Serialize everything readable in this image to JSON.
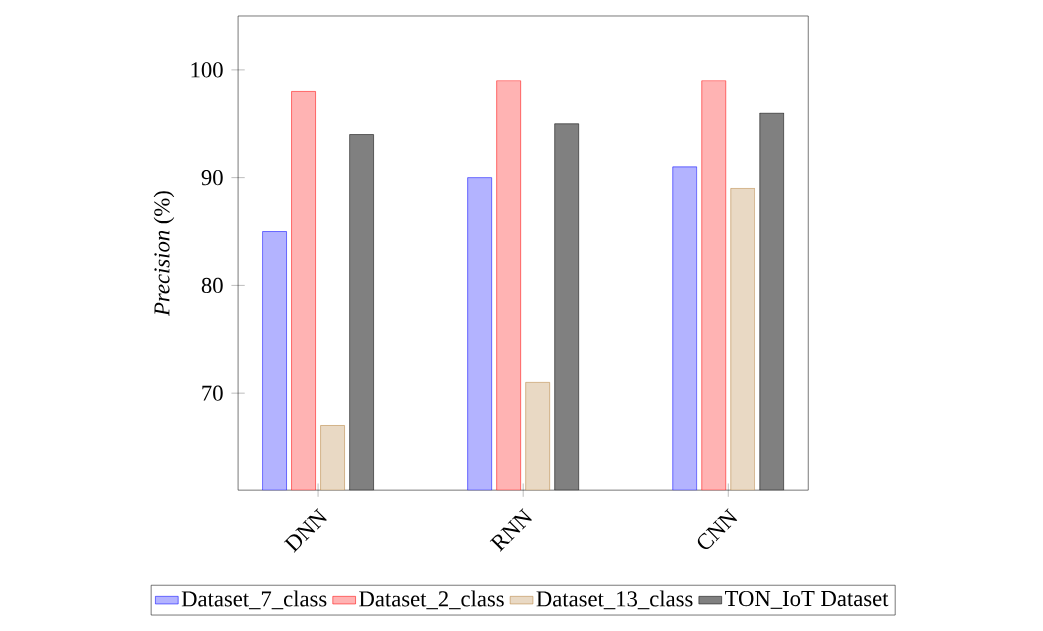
{
  "chart_data": {
    "type": "bar",
    "ylabel": "*Precision* (%)",
    "categories": [
      "DNN",
      "RNN",
      "CNN"
    ],
    "series": [
      {
        "name": "Dataset_7_class",
        "color": "#b3b3ff",
        "values": [
          85,
          90,
          91
        ]
      },
      {
        "name": "Dataset_2_class",
        "color": "#ffb3b3",
        "values": [
          98,
          99,
          99
        ]
      },
      {
        "name": "Dataset_13_class",
        "color": "#e9d9c4",
        "values": [
          67,
          71,
          89
        ]
      },
      {
        "name": "TON_IoT Dataset",
        "color": "#808080",
        "values": [
          94,
          95,
          96
        ]
      }
    ],
    "ylim": [
      61,
      105
    ],
    "yticks": [
      70,
      80,
      90,
      100
    ],
    "legend": "bottom",
    "grid": false
  }
}
